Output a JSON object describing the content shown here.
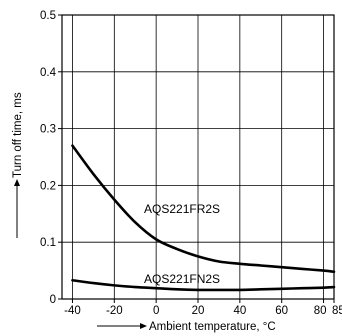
{
  "chart_data": {
    "type": "line",
    "title": "",
    "xlabel": "Ambient temperature, °C",
    "ylabel": "Turn off time, ms",
    "xlim": [
      -45,
      85
    ],
    "ylim": [
      0,
      0.5
    ],
    "x_ticks": [
      -40,
      -20,
      0,
      20,
      40,
      60,
      80,
      85
    ],
    "x_tick_labels": [
      "-40",
      "-20",
      "0",
      "20",
      "40",
      "60",
      "80",
      "85"
    ],
    "y_ticks": [
      0,
      0.1,
      0.2,
      0.3,
      0.4,
      0.5
    ],
    "y_tick_labels": [
      "0",
      "0.1",
      "0.2",
      "0.3",
      "0.4",
      "0.5"
    ],
    "grid": true,
    "legend": "none",
    "series": [
      {
        "name": "AQS221FR2S",
        "x": [
          -40,
          -30,
          -20,
          -10,
          0,
          10,
          20,
          30,
          40,
          50,
          60,
          70,
          80,
          85
        ],
        "y": [
          0.27,
          0.22,
          0.175,
          0.135,
          0.105,
          0.088,
          0.075,
          0.066,
          0.062,
          0.059,
          0.056,
          0.053,
          0.05,
          0.048
        ]
      },
      {
        "name": "AQS221FN2S",
        "x": [
          -40,
          -30,
          -20,
          -10,
          0,
          10,
          20,
          30,
          40,
          50,
          60,
          70,
          80,
          85
        ],
        "y": [
          0.033,
          0.028,
          0.024,
          0.021,
          0.019,
          0.017,
          0.016,
          0.016,
          0.016,
          0.017,
          0.018,
          0.019,
          0.02,
          0.021
        ]
      }
    ]
  }
}
